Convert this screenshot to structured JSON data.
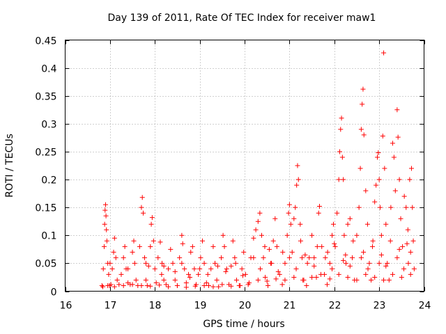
{
  "chart_data": {
    "type": "scatter",
    "title": "Day 139 of 2011, Rate Of TEC Index for receiver maw1",
    "xlabel": "GPS time / hours",
    "ylabel": "ROTI / TECUs",
    "xlim": [
      16,
      24
    ],
    "ylim": [
      0,
      0.45
    ],
    "xticks": [
      "16",
      "17",
      "18",
      "19",
      "20",
      "21",
      "22",
      "23",
      "24"
    ],
    "yticks": [
      "0",
      "0.05",
      "0.1",
      "0.15",
      "0.2",
      "0.25",
      "0.3",
      "0.35",
      "0.4",
      "0.45"
    ],
    "grid": true,
    "marker": "plus",
    "color": "#ff0000",
    "series": [
      {
        "name": "ROTI",
        "points": [
          [
            16.82,
            0.01
          ],
          [
            16.85,
            0.04
          ],
          [
            16.87,
            0.08
          ],
          [
            16.88,
            0.12
          ],
          [
            16.89,
            0.145
          ],
          [
            16.9,
            0.155
          ],
          [
            16.91,
            0.135
          ],
          [
            16.92,
            0.11
          ],
          [
            16.93,
            0.09
          ],
          [
            16.95,
            0.05
          ],
          [
            16.97,
            0.03
          ],
          [
            16.99,
            0.01
          ],
          [
            17.02,
            0.012
          ],
          [
            17.05,
            0.04
          ],
          [
            17.08,
            0.07
          ],
          [
            17.1,
            0.095
          ],
          [
            17.13,
            0.06
          ],
          [
            17.16,
            0.02
          ],
          [
            17.2,
            0.012
          ],
          [
            17.25,
            0.03
          ],
          [
            17.3,
            0.06
          ],
          [
            17.33,
            0.08
          ],
          [
            17.36,
            0.04
          ],
          [
            17.4,
            0.015
          ],
          [
            17.45,
            0.012
          ],
          [
            17.5,
            0.07
          ],
          [
            17.53,
            0.09
          ],
          [
            17.55,
            0.05
          ],
          [
            17.58,
            0.02
          ],
          [
            17.62,
            0.01
          ],
          [
            17.66,
            0.08
          ],
          [
            17.7,
            0.15
          ],
          [
            17.72,
            0.168
          ],
          [
            17.74,
            0.14
          ],
          [
            17.77,
            0.06
          ],
          [
            17.8,
            0.02
          ],
          [
            17.83,
            0.01
          ],
          [
            17.86,
            0.045
          ],
          [
            17.9,
            0.08
          ],
          [
            17.92,
            0.12
          ],
          [
            17.94,
            0.132
          ],
          [
            17.97,
            0.09
          ],
          [
            18.0,
            0.04
          ],
          [
            18.03,
            0.015
          ],
          [
            18.07,
            0.06
          ],
          [
            18.12,
            0.088
          ],
          [
            18.16,
            0.05
          ],
          [
            18.2,
            0.02
          ],
          [
            18.25,
            0.012
          ],
          [
            18.3,
            0.04
          ],
          [
            18.35,
            0.075
          ],
          [
            18.4,
            0.05
          ],
          [
            18.45,
            0.02
          ],
          [
            18.5,
            0.01
          ],
          [
            18.55,
            0.06
          ],
          [
            18.6,
            0.1
          ],
          [
            18.62,
            0.085
          ],
          [
            18.66,
            0.04
          ],
          [
            18.7,
            0.015
          ],
          [
            18.75,
            0.03
          ],
          [
            18.8,
            0.07
          ],
          [
            18.84,
            0.08
          ],
          [
            18.88,
            0.04
          ],
          [
            18.92,
            0.012
          ],
          [
            18.97,
            0.03
          ],
          [
            19.02,
            0.06
          ],
          [
            19.06,
            0.09
          ],
          [
            19.1,
            0.05
          ],
          [
            19.15,
            0.015
          ],
          [
            19.2,
            0.01
          ],
          [
            19.25,
            0.04
          ],
          [
            19.3,
            0.08
          ],
          [
            19.34,
            0.05
          ],
          [
            19.38,
            0.02
          ],
          [
            19.42,
            0.008
          ],
          [
            19.48,
            0.06
          ],
          [
            19.52,
            0.1
          ],
          [
            19.55,
            0.08
          ],
          [
            19.6,
            0.04
          ],
          [
            19.65,
            0.012
          ],
          [
            19.7,
            0.045
          ],
          [
            19.74,
            0.09
          ],
          [
            19.78,
            0.06
          ],
          [
            19.82,
            0.02
          ],
          [
            19.88,
            0.01
          ],
          [
            19.94,
            0.04
          ],
          [
            19.98,
            0.07
          ],
          [
            20.02,
            0.03
          ],
          [
            20.08,
            0.012
          ],
          [
            20.14,
            0.06
          ],
          [
            20.2,
            0.095
          ],
          [
            20.25,
            0.11
          ],
          [
            20.3,
            0.125
          ],
          [
            20.34,
            0.14
          ],
          [
            20.38,
            0.1
          ],
          [
            20.42,
            0.06
          ],
          [
            20.46,
            0.025
          ],
          [
            20.52,
            0.01
          ],
          [
            20.58,
            0.05
          ],
          [
            20.64,
            0.09
          ],
          [
            20.68,
            0.13
          ],
          [
            20.72,
            0.08
          ],
          [
            20.78,
            0.03
          ],
          [
            20.84,
            0.012
          ],
          [
            20.9,
            0.05
          ],
          [
            20.95,
            0.1
          ],
          [
            20.98,
            0.14
          ],
          [
            21.0,
            0.155
          ],
          [
            21.03,
            0.12
          ],
          [
            21.06,
            0.07
          ],
          [
            21.1,
            0.13
          ],
          [
            21.13,
            0.15
          ],
          [
            21.16,
            0.19
          ],
          [
            21.18,
            0.225
          ],
          [
            21.2,
            0.2
          ],
          [
            21.24,
            0.12
          ],
          [
            21.28,
            0.06
          ],
          [
            21.32,
            0.02
          ],
          [
            21.38,
            0.01
          ],
          [
            21.44,
            0.06
          ],
          [
            21.5,
            0.1
          ],
          [
            21.55,
            0.06
          ],
          [
            21.6,
            0.025
          ],
          [
            21.65,
            0.14
          ],
          [
            21.67,
            0.152
          ],
          [
            21.72,
            0.08
          ],
          [
            21.78,
            0.03
          ],
          [
            21.84,
            0.012
          ],
          [
            21.9,
            0.05
          ],
          [
            21.95,
            0.1
          ],
          [
            21.98,
            0.12
          ],
          [
            22.02,
            0.08
          ],
          [
            22.06,
            0.14
          ],
          [
            22.1,
            0.2
          ],
          [
            22.12,
            0.25
          ],
          [
            22.14,
            0.29
          ],
          [
            22.16,
            0.31
          ],
          [
            22.18,
            0.24
          ],
          [
            22.2,
            0.2
          ],
          [
            22.22,
            0.1
          ],
          [
            22.26,
            0.05
          ],
          [
            22.3,
            0.12
          ],
          [
            22.35,
            0.13
          ],
          [
            22.4,
            0.06
          ],
          [
            22.45,
            0.02
          ],
          [
            22.5,
            0.1
          ],
          [
            22.55,
            0.15
          ],
          [
            22.58,
            0.22
          ],
          [
            22.6,
            0.29
          ],
          [
            22.62,
            0.335
          ],
          [
            22.64,
            0.362
          ],
          [
            22.66,
            0.28
          ],
          [
            22.7,
            0.18
          ],
          [
            22.74,
            0.12
          ],
          [
            22.78,
            0.05
          ],
          [
            22.82,
            0.02
          ],
          [
            22.86,
            0.09
          ],
          [
            22.9,
            0.16
          ],
          [
            22.93,
            0.19
          ],
          [
            22.96,
            0.24
          ],
          [
            22.98,
            0.248
          ],
          [
            23.0,
            0.2
          ],
          [
            23.02,
            0.15
          ],
          [
            23.05,
            0.1
          ],
          [
            23.08,
            0.278
          ],
          [
            23.1,
            0.427
          ],
          [
            23.12,
            0.22
          ],
          [
            23.15,
            0.12
          ],
          [
            23.18,
            0.05
          ],
          [
            23.22,
            0.02
          ],
          [
            23.26,
            0.15
          ],
          [
            23.3,
            0.265
          ],
          [
            23.33,
            0.24
          ],
          [
            23.36,
            0.18
          ],
          [
            23.4,
            0.325
          ],
          [
            23.42,
            0.276
          ],
          [
            23.45,
            0.2
          ],
          [
            23.48,
            0.13
          ],
          [
            23.52,
            0.08
          ],
          [
            23.56,
            0.17
          ],
          [
            23.6,
            0.15
          ],
          [
            23.64,
            0.11
          ],
          [
            23.68,
            0.2
          ],
          [
            23.72,
            0.22
          ],
          [
            23.74,
            0.15
          ],
          [
            23.76,
            0.09
          ],
          [
            23.78,
            0.04
          ],
          [
            16.84,
            0.008
          ],
          [
            16.95,
            0.01
          ],
          [
            17.1,
            0.008
          ],
          [
            17.3,
            0.01
          ],
          [
            17.5,
            0.012
          ],
          [
            17.7,
            0.01
          ],
          [
            17.9,
            0.009
          ],
          [
            18.1,
            0.011
          ],
          [
            18.3,
            0.008
          ],
          [
            18.5,
            0.01
          ],
          [
            18.7,
            0.007
          ],
          [
            18.9,
            0.009
          ],
          [
            19.1,
            0.01
          ],
          [
            19.3,
            0.008
          ],
          [
            19.5,
            0.012
          ],
          [
            19.7,
            0.009
          ],
          [
            19.9,
            0.01
          ],
          [
            20.1,
            0.015
          ],
          [
            20.3,
            0.02
          ],
          [
            20.5,
            0.018
          ],
          [
            20.7,
            0.022
          ],
          [
            20.9,
            0.02
          ],
          [
            21.1,
            0.025
          ],
          [
            21.3,
            0.02
          ],
          [
            21.5,
            0.025
          ],
          [
            21.7,
            0.03
          ],
          [
            21.9,
            0.022
          ],
          [
            22.1,
            0.03
          ],
          [
            22.3,
            0.025
          ],
          [
            22.5,
            0.02
          ],
          [
            22.7,
            0.03
          ],
          [
            22.9,
            0.025
          ],
          [
            23.1,
            0.02
          ],
          [
            23.3,
            0.03
          ],
          [
            23.5,
            0.025
          ],
          [
            23.7,
            0.03
          ],
          [
            17.0,
            0.05
          ],
          [
            17.4,
            0.04
          ],
          [
            17.8,
            0.05
          ],
          [
            18.2,
            0.045
          ],
          [
            18.6,
            0.05
          ],
          [
            19.0,
            0.04
          ],
          [
            19.4,
            0.045
          ],
          [
            19.8,
            0.05
          ],
          [
            20.2,
            0.06
          ],
          [
            20.6,
            0.05
          ],
          [
            21.0,
            0.06
          ],
          [
            21.4,
            0.05
          ],
          [
            21.8,
            0.06
          ],
          [
            22.2,
            0.055
          ],
          [
            22.6,
            0.06
          ],
          [
            23.0,
            0.05
          ],
          [
            23.4,
            0.06
          ],
          [
            23.65,
            0.05
          ],
          [
            18.15,
            0.03
          ],
          [
            18.45,
            0.035
          ],
          [
            18.78,
            0.025
          ],
          [
            19.18,
            0.03
          ],
          [
            19.58,
            0.035
          ],
          [
            19.96,
            0.028
          ],
          [
            20.35,
            0.04
          ],
          [
            20.75,
            0.035
          ],
          [
            21.15,
            0.04
          ],
          [
            21.55,
            0.045
          ],
          [
            21.95,
            0.04
          ],
          [
            22.35,
            0.045
          ],
          [
            22.75,
            0.04
          ],
          [
            23.15,
            0.045
          ],
          [
            23.55,
            0.04
          ],
          [
            20.45,
            0.08
          ],
          [
            20.85,
            0.07
          ],
          [
            21.25,
            0.09
          ],
          [
            21.62,
            0.08
          ],
          [
            22.0,
            0.085
          ],
          [
            22.42,
            0.09
          ],
          [
            22.85,
            0.08
          ],
          [
            23.25,
            0.09
          ],
          [
            23.62,
            0.085
          ],
          [
            20.55,
            0.075
          ],
          [
            21.35,
            0.065
          ],
          [
            21.85,
            0.07
          ],
          [
            22.25,
            0.065
          ],
          [
            22.65,
            0.07
          ],
          [
            23.05,
            0.065
          ],
          [
            23.45,
            0.075
          ],
          [
            23.7,
            0.07
          ]
        ]
      }
    ]
  }
}
